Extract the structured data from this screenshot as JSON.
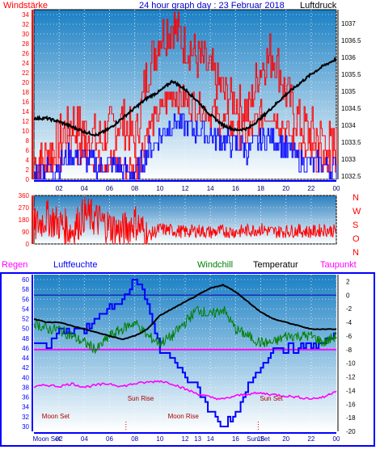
{
  "colors": {
    "wind_speed": "#ff0000",
    "wind_gust": "#ff0000",
    "wind_avg": "#0000ff",
    "pressure": "#000000",
    "direction": "#ff0000",
    "humidity": "#0000ff",
    "windchill": "#008000",
    "temperature": "#000000",
    "dewpoint": "#ff00ff",
    "rain": "#ff00ff",
    "frame": "#0000ff",
    "left_axis": "#ff0000",
    "right_axis": "#000000",
    "bg_top": "#1b80c4",
    "bg_bottom": "#ffffff"
  },
  "top": {
    "title": "24 hour graph day : 23 Februar 2018",
    "left_label": "Windstärke",
    "right_label": "Luftdruck"
  },
  "middle": {
    "compass": [
      "N",
      "W",
      "S",
      "O",
      "N"
    ]
  },
  "bottom": {
    "labels": {
      "rain": "Regen",
      "humidity": "Luftfeuchte",
      "windchill": "Windchill",
      "temperature": "Temperatur",
      "dewpoint": "Taupunkt"
    },
    "events": [
      {
        "label": "Moon Set",
        "time": 0.5
      },
      {
        "label": "Sun Rise",
        "time": 7.3
      },
      {
        "label": "Moon Rise",
        "time": 10.5
      },
      {
        "label": "Sun Set",
        "time": 17.8
      }
    ],
    "x_extra_labels": [
      "Moon Set",
      "Sun Set"
    ]
  },
  "chart_data": [
    {
      "type": "line",
      "title": "24 hour graph day : 23 Februar 2018",
      "x_tick_labels": [
        "02",
        "04",
        "06",
        "08",
        "10",
        "12",
        "14",
        "16",
        "18",
        "20",
        "22",
        "00"
      ],
      "x_ticks_hours": [
        2,
        4,
        6,
        8,
        10,
        12,
        14,
        16,
        18,
        20,
        22,
        24
      ],
      "xlim_hours": [
        0,
        24
      ],
      "ylabel_left": "Windstärke",
      "ylim_left": [
        0,
        35
      ],
      "y_ticks_left": [
        0,
        2,
        4,
        6,
        8,
        10,
        12,
        14,
        16,
        18,
        20,
        22,
        24,
        26,
        28,
        30,
        32,
        34
      ],
      "ylabel_right": "Luftdruck",
      "ylim_right": [
        1032.4,
        1037.4
      ],
      "y_ticks_right": [
        1032.5,
        1033,
        1033.5,
        1034,
        1034.5,
        1035,
        1035.5,
        1036,
        1036.5,
        1037
      ],
      "grid": true,
      "series": [
        {
          "name": "gust",
          "axis": "left",
          "x": [
            0,
            1,
            2,
            3,
            4,
            5,
            6,
            7,
            8,
            9,
            10,
            11,
            12,
            13,
            14,
            15,
            16,
            17,
            18,
            19,
            20,
            21,
            22,
            23,
            24
          ],
          "y": [
            3,
            5,
            8,
            12,
            10,
            8,
            10,
            12,
            8,
            22,
            30,
            32,
            28,
            25,
            22,
            18,
            16,
            14,
            24,
            26,
            18,
            12,
            10,
            8,
            6
          ]
        },
        {
          "name": "speed",
          "axis": "left",
          "x": [
            0,
            1,
            2,
            3,
            4,
            5,
            6,
            7,
            8,
            9,
            10,
            11,
            12,
            13,
            14,
            15,
            16,
            17,
            18,
            19,
            20,
            21,
            22,
            23,
            24
          ],
          "y": [
            2,
            3,
            5,
            7,
            6,
            4,
            4,
            3,
            2,
            10,
            14,
            18,
            16,
            15,
            14,
            12,
            10,
            9,
            13,
            14,
            10,
            6,
            5,
            4,
            3
          ]
        },
        {
          "name": "average",
          "axis": "left",
          "x": [
            0,
            1,
            2,
            3,
            4,
            5,
            6,
            7,
            8,
            9,
            10,
            11,
            12,
            13,
            14,
            15,
            16,
            17,
            18,
            19,
            20,
            21,
            22,
            23,
            24
          ],
          "y": [
            1,
            2,
            3,
            5,
            4,
            3,
            3,
            2,
            1,
            6,
            9,
            12,
            11,
            10,
            9,
            8,
            7,
            6,
            8,
            9,
            6,
            4,
            3,
            3,
            2
          ]
        },
        {
          "name": "Luftdruck",
          "axis": "right",
          "x": [
            0,
            1,
            2,
            3,
            4,
            5,
            6,
            7,
            8,
            9,
            10,
            11,
            12,
            13,
            14,
            15,
            16,
            17,
            18,
            19,
            20,
            21,
            22,
            23,
            24
          ],
          "y": [
            1034.2,
            1034.2,
            1034.1,
            1033.95,
            1033.8,
            1033.7,
            1033.9,
            1034.2,
            1034.5,
            1034.8,
            1035.0,
            1035.3,
            1035.05,
            1034.7,
            1034.3,
            1034.0,
            1033.85,
            1033.9,
            1034.2,
            1034.55,
            1034.9,
            1035.2,
            1035.5,
            1035.75,
            1035.95
          ]
        }
      ]
    },
    {
      "type": "scatter",
      "title": "",
      "ylim": [
        0,
        360
      ],
      "y_ticks": [
        0,
        90,
        180,
        270,
        360
      ],
      "x_tick_labels": [],
      "series": [
        {
          "name": "direction",
          "x": [
            0,
            1,
            2,
            3,
            4,
            5,
            6,
            7,
            8,
            9,
            10,
            11,
            12,
            13,
            14,
            15,
            16,
            17,
            18,
            19,
            20,
            21,
            22,
            23,
            24
          ],
          "y": [
            120,
            200,
            150,
            100,
            220,
            180,
            130,
            90,
            170,
            60,
            110,
            100,
            90,
            100,
            85,
            95,
            90,
            100,
            110,
            90,
            95,
            100,
            90,
            105,
            95
          ]
        }
      ]
    },
    {
      "type": "line",
      "title": "",
      "x_tick_labels": [
        "Moon Set",
        "Sun Set",
        "02",
        "04",
        "06",
        "08",
        "10",
        "12",
        "13",
        "14",
        "16",
        "18",
        "20",
        "22",
        "00"
      ],
      "ylim_left": [
        29,
        61
      ],
      "y_ticks_left": [
        30,
        32,
        34,
        36,
        38,
        40,
        42,
        44,
        46,
        48,
        50,
        52,
        54,
        56,
        58,
        60
      ],
      "ylim_right": [
        -20,
        3
      ],
      "y_ticks_right": [
        2,
        0,
        -2,
        -4,
        -6,
        -8,
        -10,
        -12,
        -14,
        -16,
        -18,
        -20
      ],
      "grid": true,
      "series": [
        {
          "name": "Luftfeuchte",
          "axis": "left",
          "x": [
            0,
            1,
            2,
            3,
            4,
            5,
            6,
            7,
            8,
            9,
            10,
            11,
            12,
            13,
            14,
            15,
            16,
            17,
            18,
            19,
            20,
            21,
            22,
            23,
            24
          ],
          "y": [
            47,
            46,
            50,
            49,
            50,
            52,
            54,
            56,
            60,
            55,
            45,
            44,
            40,
            38,
            33,
            30,
            32,
            38,
            42,
            46,
            46,
            46,
            47,
            47,
            49
          ]
        },
        {
          "name": "Windchill",
          "axis": "right",
          "x": [
            0,
            1,
            2,
            3,
            4,
            5,
            6,
            7,
            8,
            9,
            10,
            11,
            12,
            13,
            14,
            15,
            16,
            17,
            18,
            19,
            20,
            21,
            22,
            23,
            24
          ],
          "y": [
            -4,
            -5,
            -5,
            -6,
            -7,
            -8,
            -6,
            -5,
            -4,
            -6,
            -7,
            -6,
            -4,
            -2,
            -3,
            -2,
            -5,
            -6,
            -7,
            -7,
            -6,
            -6,
            -6,
            -7,
            -6
          ]
        },
        {
          "name": "Temperatur",
          "axis": "right",
          "x": [
            0,
            1,
            2,
            3,
            4,
            5,
            6,
            7,
            8,
            9,
            10,
            11,
            12,
            13,
            14,
            15,
            16,
            17,
            18,
            19,
            20,
            21,
            22,
            23,
            24
          ],
          "y": [
            -3.5,
            -4,
            -4,
            -4.5,
            -5,
            -5.5,
            -6,
            -6.5,
            -6,
            -5,
            -3,
            -2,
            -1,
            0,
            1,
            1.5,
            0.5,
            -1,
            -2.5,
            -3.5,
            -4,
            -4.5,
            -5,
            -5,
            -5
          ]
        },
        {
          "name": "Taupunkt",
          "axis": "right",
          "x": [
            0,
            1,
            2,
            3,
            4,
            5,
            6,
            7,
            8,
            9,
            10,
            11,
            12,
            13,
            14,
            15,
            16,
            17,
            18,
            19,
            20,
            21,
            22,
            23,
            24
          ],
          "y": [
            -13.5,
            -13.2,
            -13.4,
            -13.0,
            -13.5,
            -13.2,
            -13.0,
            -13.4,
            -13.0,
            -12.8,
            -12.6,
            -13.0,
            -13.8,
            -14.5,
            -15.0,
            -15.3,
            -14.8,
            -14.5,
            -14.4,
            -14.6,
            -14.8,
            -15.0,
            -15.2,
            -15.0,
            -14.0
          ]
        },
        {
          "name": "Regen",
          "axis": "right",
          "x": [
            0,
            24
          ],
          "y": [
            -8,
            -8
          ]
        }
      ]
    }
  ]
}
